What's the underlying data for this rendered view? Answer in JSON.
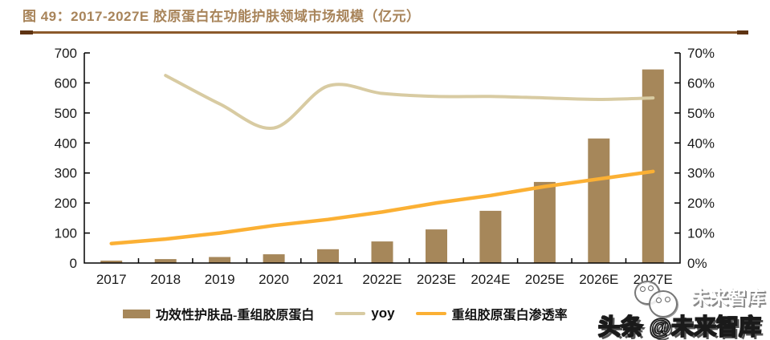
{
  "figure": {
    "title": "图 49：2017-2027E 胶原蛋白在功能护肤领域市场规模（亿元）"
  },
  "watermark": {
    "ghost": "未来智库",
    "main": "头条 @未来智库",
    "mascot": "mascot-face-icon"
  },
  "colors": {
    "bar": "#A6875A",
    "yoy_line": "#D8CBA2",
    "penetration_line": "#FBB034",
    "axis": "#000000",
    "axis_text": "#1a1a1a",
    "title_text": "#A8845A",
    "rule": "#8C5A2B"
  },
  "chart_data": {
    "type": "bar",
    "title": "图 49：2017-2027E 胶原蛋白在功能护肤领域市场规模（亿元）",
    "categories": [
      "2017",
      "2018",
      "2019",
      "2020",
      "2021",
      "2022E",
      "2023E",
      "2024E",
      "2025E",
      "2026E",
      "2027E"
    ],
    "series": [
      {
        "name": "功效性护肤品-重组胶原蛋白",
        "type": "bar",
        "axis": "left",
        "color": "#A6875A",
        "smooth": false,
        "values": [
          8,
          13,
          20,
          29,
          46,
          72,
          112,
          174,
          270,
          415,
          645
        ]
      },
      {
        "name": "yoy",
        "type": "line",
        "axis": "right",
        "color": "#D8CBA2",
        "smooth": true,
        "values": [
          null,
          62.5,
          53,
          45,
          59,
          56.5,
          55.5,
          55.5,
          55,
          54.5,
          55
        ]
      },
      {
        "name": "重组胶原蛋白渗透率",
        "type": "line",
        "axis": "right",
        "color": "#FBB034",
        "smooth": false,
        "values": [
          6.5,
          8,
          10,
          12.5,
          14.5,
          17,
          20,
          22.5,
          25.5,
          28,
          30.5
        ]
      }
    ],
    "left_axis": {
      "min": 0,
      "max": 700,
      "step": 100,
      "suffix": ""
    },
    "right_axis": {
      "min": 0,
      "max": 70,
      "step": 10,
      "suffix": "%"
    },
    "grid": false,
    "legend_position": "bottom",
    "xlabel": "",
    "ylabel": ""
  }
}
